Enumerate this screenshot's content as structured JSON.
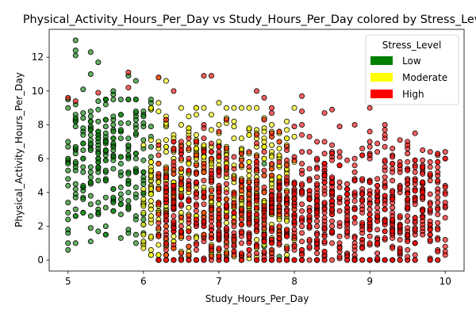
{
  "chart_data": {
    "type": "scatter",
    "title": "Physical_Activity_Hours_Per_Day vs Study_Hours_Per_Day colored by Stress_Level",
    "xlabel": "Study_Hours_Per_Day",
    "ylabel": "Physical_Activity_Hours_Per_Day",
    "xlim": [
      4.75,
      10.25
    ],
    "ylim": [
      -0.65,
      13.65
    ],
    "xticks": [
      5,
      6,
      7,
      8,
      9,
      10
    ],
    "yticks": [
      0,
      2,
      4,
      6,
      8,
      10,
      12
    ],
    "grid": false,
    "legend": {
      "title": "Stress_Level",
      "position": "top-right"
    },
    "series": [
      {
        "name": "Low",
        "color": "#008000",
        "x_range": [
          5.0,
          7.9
        ],
        "y_range": [
          0.0,
          13.0
        ],
        "points": [
          [
            5.0,
            0.6
          ],
          [
            5.0,
            1.6
          ],
          [
            5.1,
            13.0
          ],
          [
            5.1,
            12.4
          ],
          [
            5.1,
            12.1
          ],
          [
            5.2,
            10.1
          ],
          [
            5.3,
            12.3
          ],
          [
            5.3,
            11.0
          ],
          [
            5.4,
            11.7
          ],
          [
            5.4,
            9.4
          ],
          [
            5.3,
            1.1
          ],
          [
            5.5,
            1.5
          ],
          [
            5.5,
            2.0
          ],
          [
            5.8,
            1.6
          ],
          [
            5.9,
            10.6
          ],
          [
            5.8,
            10.9
          ],
          [
            5.6,
            9.8
          ],
          [
            5.6,
            10.0
          ],
          [
            5.0,
            9.0
          ],
          [
            5.0,
            3.4
          ],
          [
            5.0,
            2.8
          ],
          [
            5.6,
            2.9
          ],
          [
            5.9,
            2.6
          ],
          [
            6.0,
            2.1
          ],
          [
            7.7,
            0.6
          ],
          [
            7.8,
            0.2
          ],
          [
            7.9,
            0.1
          ],
          [
            7.7,
            3.9
          ],
          [
            7.8,
            4.2
          ],
          [
            7.6,
            0.8
          ],
          [
            7.6,
            1.6
          ],
          [
            7.7,
            3.5
          ],
          [
            7.8,
            4.5
          ],
          [
            7.6,
            5.7
          ],
          [
            7.7,
            5.0
          ]
        ],
        "generated_points": {
          "count": 260,
          "x_range": [
            5.0,
            6.1
          ],
          "y_range": [
            1.0,
            9.5
          ],
          "y_center": 5.8,
          "y_spread": 2.2
        }
      },
      {
        "name": "Moderate",
        "color": "#ffff00",
        "x_range": [
          6.0,
          8.0
        ],
        "y_range": [
          0.0,
          11.0
        ],
        "points": [
          [
            6.2,
            10.8
          ],
          [
            6.3,
            10.6
          ],
          [
            6.1,
            0.6
          ],
          [
            6.3,
            0.0
          ],
          [
            6.6,
            0.2
          ],
          [
            6.9,
            0.5
          ],
          [
            7.2,
            0.2
          ],
          [
            7.3,
            0.0
          ],
          [
            7.5,
            0.2
          ],
          [
            6.1,
            8.9
          ],
          [
            6.2,
            9.3
          ],
          [
            6.3,
            8.3
          ],
          [
            7.9,
            1.5
          ],
          [
            8.0,
            3.6
          ],
          [
            8.0,
            2.6
          ],
          [
            6.9,
            8.6
          ],
          [
            7.0,
            9.3
          ],
          [
            7.4,
            0.1
          ]
        ],
        "generated_points": {
          "count": 520,
          "x_range": [
            6.0,
            8.0
          ],
          "y_range": [
            0.3,
            9.0
          ],
          "y_center": 4.4,
          "y_spread": 2.3
        }
      },
      {
        "name": "High",
        "color": "#ff0000",
        "x_range": [
          5.0,
          10.0
        ],
        "y_range": [
          0.0,
          11.0
        ],
        "points": [
          [
            5.0,
            9.6
          ],
          [
            5.1,
            9.4
          ],
          [
            5.4,
            9.9
          ],
          [
            5.8,
            11.1
          ],
          [
            5.8,
            10.2
          ],
          [
            6.2,
            10.8
          ],
          [
            6.4,
            10.0
          ],
          [
            6.8,
            10.9
          ],
          [
            6.9,
            10.9
          ],
          [
            7.5,
            10.0
          ],
          [
            7.6,
            9.6
          ],
          [
            8.1,
            9.7
          ],
          [
            8.4,
            8.7
          ],
          [
            8.5,
            8.9
          ],
          [
            8.8,
            8.0
          ],
          [
            9.0,
            7.6
          ],
          [
            9.2,
            7.2
          ],
          [
            9.5,
            7.0
          ],
          [
            9.8,
            6.4
          ],
          [
            10.0,
            6.0
          ],
          [
            7.3,
            0.2
          ],
          [
            8.2,
            0.0
          ],
          [
            8.6,
            0.1
          ],
          [
            9.0,
            0.0
          ],
          [
            9.4,
            0.3
          ],
          [
            9.8,
            0.1
          ],
          [
            10.0,
            0.5
          ],
          [
            9.2,
            5.8
          ],
          [
            9.6,
            5.9
          ],
          [
            9.9,
            5.5
          ]
        ],
        "generated_points": {
          "count": 1180,
          "x_range": [
            6.2,
            10.0
          ],
          "y_range": [
            0.0,
            9.0
          ],
          "y_center": 3.0,
          "y_spread": 2.2
        }
      }
    ]
  }
}
